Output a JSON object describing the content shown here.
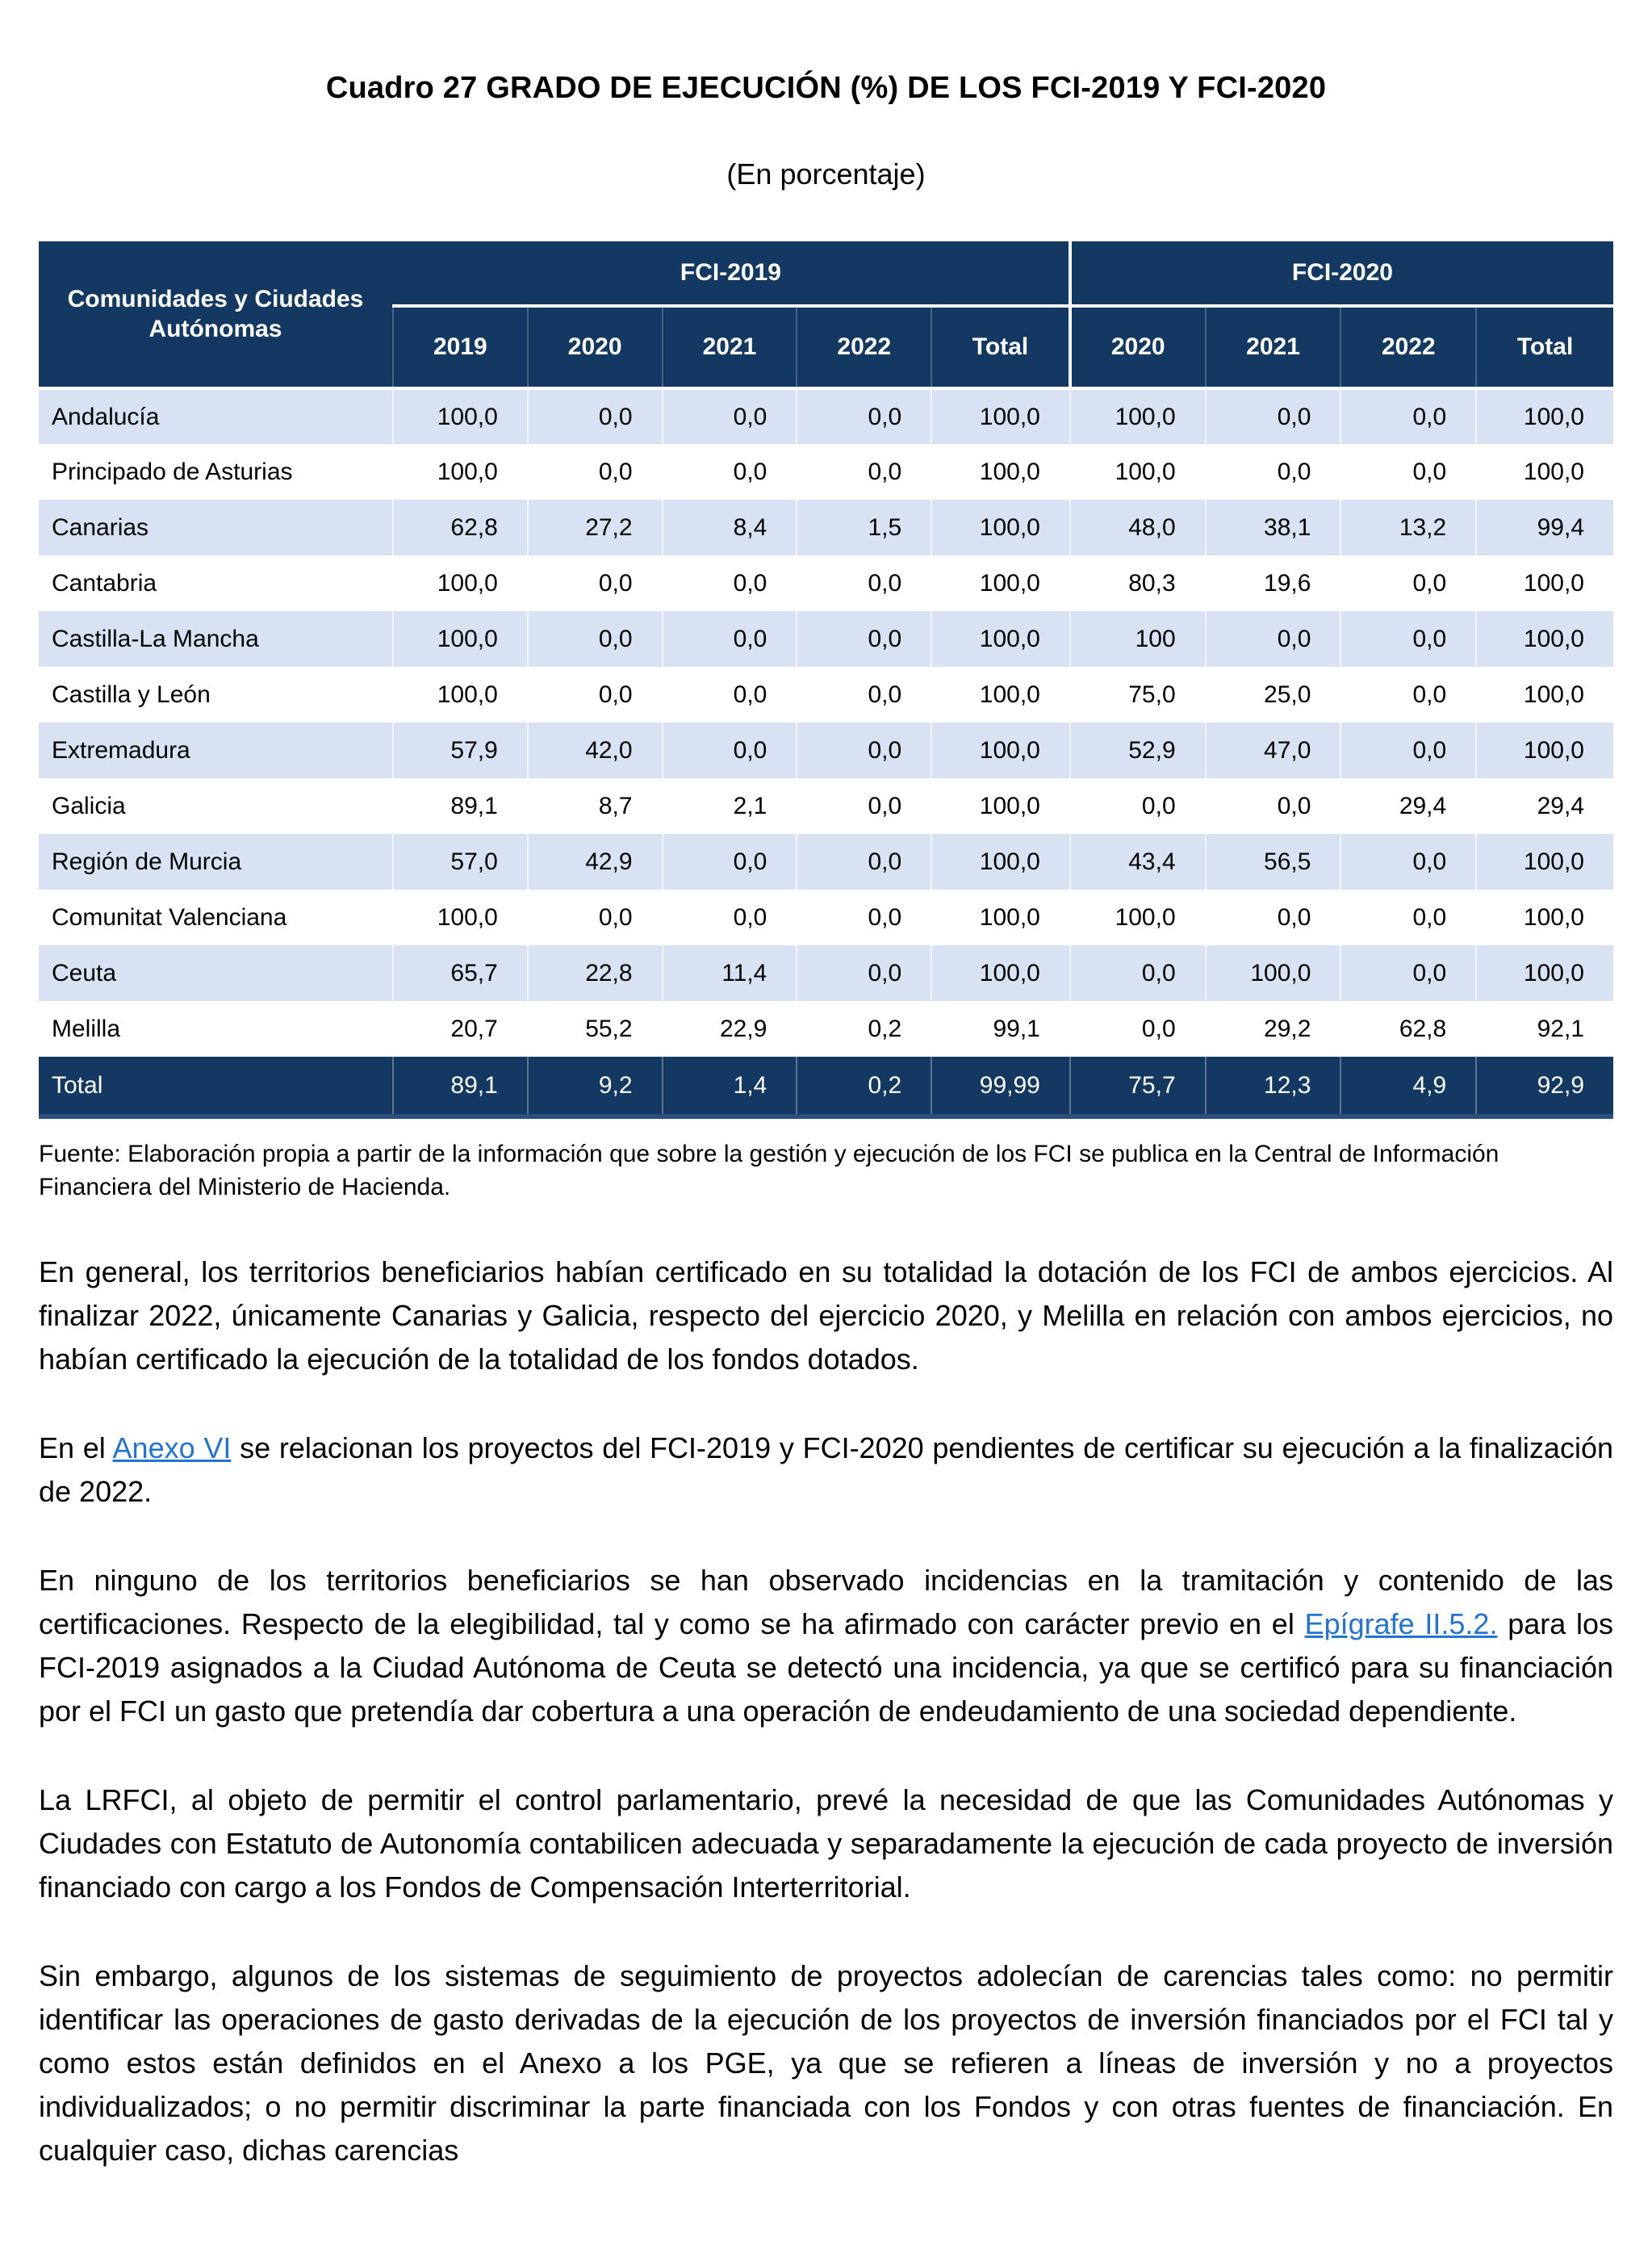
{
  "page": {
    "title": "Cuadro 27 GRADO DE EJECUCIÓN (%) DE LOS FCI-2019 Y FCI-2020",
    "subtitle": "(En porcentaje)"
  },
  "table": {
    "row_header": "Comunidades y Ciudades Autónomas",
    "groups": [
      {
        "label": "FCI-2019",
        "years": [
          "2019",
          "2020",
          "2021",
          "2022",
          "Total"
        ]
      },
      {
        "label": "FCI-2020",
        "years": [
          "2020",
          "2021",
          "2022",
          "Total"
        ]
      }
    ],
    "rows": [
      {
        "name": "Andalucía",
        "values": [
          "100,0",
          "0,0",
          "0,0",
          "0,0",
          "100,0",
          "100,0",
          "0,0",
          "0,0",
          "100,0"
        ]
      },
      {
        "name": "Principado de Asturias",
        "values": [
          "100,0",
          "0,0",
          "0,0",
          "0,0",
          "100,0",
          "100,0",
          "0,0",
          "0,0",
          "100,0"
        ]
      },
      {
        "name": "Canarias",
        "values": [
          "62,8",
          "27,2",
          "8,4",
          "1,5",
          "100,0",
          "48,0",
          "38,1",
          "13,2",
          "99,4"
        ]
      },
      {
        "name": "Cantabria",
        "values": [
          "100,0",
          "0,0",
          "0,0",
          "0,0",
          "100,0",
          "80,3",
          "19,6",
          "0,0",
          "100,0"
        ]
      },
      {
        "name": "Castilla-La Mancha",
        "values": [
          "100,0",
          "0,0",
          "0,0",
          "0,0",
          "100,0",
          "100",
          "0,0",
          "0,0",
          "100,0"
        ]
      },
      {
        "name": "Castilla y León",
        "values": [
          "100,0",
          "0,0",
          "0,0",
          "0,0",
          "100,0",
          "75,0",
          "25,0",
          "0,0",
          "100,0"
        ]
      },
      {
        "name": "Extremadura",
        "values": [
          "57,9",
          "42,0",
          "0,0",
          "0,0",
          "100,0",
          "52,9",
          "47,0",
          "0,0",
          "100,0"
        ]
      },
      {
        "name": "Galicia",
        "values": [
          "89,1",
          "8,7",
          "2,1",
          "0,0",
          "100,0",
          "0,0",
          "0,0",
          "29,4",
          "29,4"
        ]
      },
      {
        "name": "Región de Murcia",
        "values": [
          "57,0",
          "42,9",
          "0,0",
          "0,0",
          "100,0",
          "43,4",
          "56,5",
          "0,0",
          "100,0"
        ]
      },
      {
        "name": "Comunitat Valenciana",
        "values": [
          "100,0",
          "0,0",
          "0,0",
          "0,0",
          "100,0",
          "100,0",
          "0,0",
          "0,0",
          "100,0"
        ]
      },
      {
        "name": "Ceuta",
        "values": [
          "65,7",
          "22,8",
          "11,4",
          "0,0",
          "100,0",
          "0,0",
          "100,0",
          "0,0",
          "100,0"
        ]
      },
      {
        "name": "Melilla",
        "values": [
          "20,7",
          "55,2",
          "22,9",
          "0,2",
          "99,1",
          "0,0",
          "29,2",
          "62,8",
          "92,1"
        ]
      }
    ],
    "total_row": {
      "name": "Total",
      "values": [
        "89,1",
        "9,2",
        "1,4",
        "0,2",
        "99,99",
        "75,7",
        "12,3",
        "4,9",
        "92,9"
      ]
    },
    "colors": {
      "header_bg": "#133963",
      "stripe_bg": "#D9E2F2",
      "total_bg": "#133963",
      "link": "#2173D5"
    }
  },
  "source_note": "Fuente: Elaboración propia a partir de la información que sobre la gestión y ejecución de los FCI se publica en la Central de Información Financiera del Ministerio de Hacienda.",
  "paragraphs": [
    {
      "segments": [
        {
          "text": "En general, los territorios beneficiarios habían certificado en su totalidad la dotación de los FCI de ambos ejercicios. Al finalizar 2022, únicamente Canarias y Galicia, respecto del ejercicio 2020, y Melilla en relación con ambos ejercicios, no habían certificado la ejecución de la totalidad de los fondos dotados."
        }
      ]
    },
    {
      "segments": [
        {
          "text": "En el "
        },
        {
          "text": "Anexo VI",
          "link": true
        },
        {
          "text": " se relacionan los proyectos del FCI-2019 y FCI-2020 pendientes de certificar su ejecución a la finalización de 2022."
        }
      ]
    },
    {
      "segments": [
        {
          "text": "En ninguno de los territorios beneficiarios se han observado incidencias en la tramitación y contenido de las certificaciones. Respecto de la elegibilidad, tal y como se ha afirmado con carácter previo en el "
        },
        {
          "text": "Epígrafe II.5.2.",
          "link": true
        },
        {
          "text": " para los FCI-2019 asignados a la Ciudad Autónoma de Ceuta se detectó una incidencia, ya que se certificó para su financiación por el FCI un gasto que pretendía dar cobertura a una operación de endeudamiento de una sociedad dependiente."
        }
      ]
    },
    {
      "segments": [
        {
          "text": "La LRFCI, al objeto de permitir el control parlamentario, prevé la necesidad de que las Comunidades Autónomas y Ciudades con Estatuto de Autonomía contabilicen adecuada y separadamente la ejecución de cada proyecto de inversión financiado con cargo a los Fondos de Compensación Interterritorial."
        }
      ]
    },
    {
      "segments": [
        {
          "text": "Sin embargo, algunos de los sistemas de seguimiento de proyectos adolecían de carencias tales como: no permitir identificar las operaciones de gasto derivadas de la ejecución de los proyectos de inversión financiados por el FCI tal y como estos están definidos en el Anexo a los PGE, ya que se refieren a líneas de inversión y no a proyectos individualizados; o no permitir discriminar la parte financiada con los Fondos y con otras fuentes de financiación. En cualquier caso, dichas carencias"
        }
      ]
    }
  ]
}
